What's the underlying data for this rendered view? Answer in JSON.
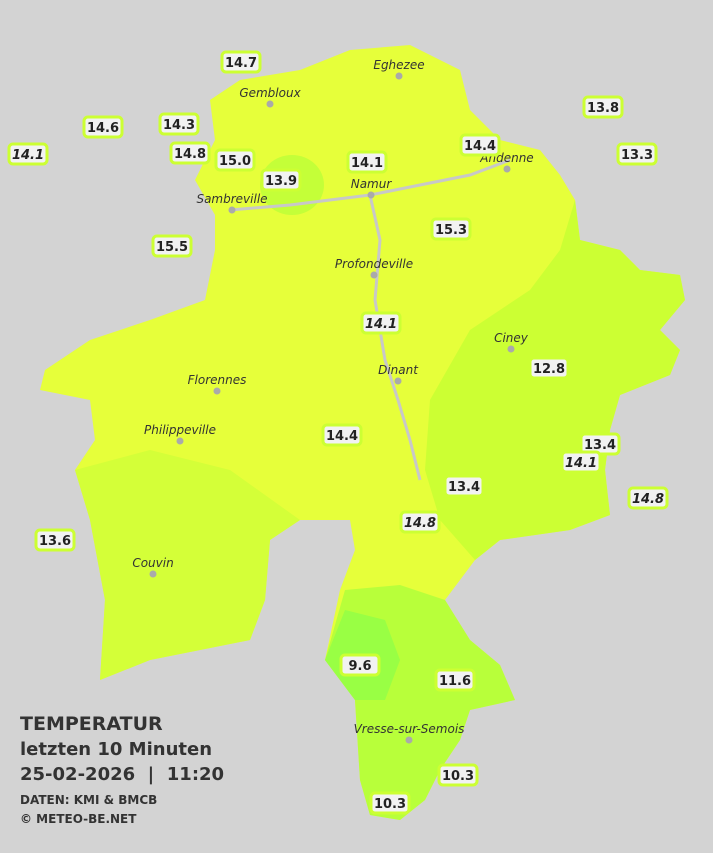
{
  "title": "TEMPERATUR",
  "subtitle": "letzten 10 Minuten",
  "datetime": "25-02-2026  |  11:20",
  "source": "DATEN: KMI & BMCB",
  "copyright": "© METEO-BE.NET",
  "cities": [
    "Eghezee",
    "Gembloux",
    "Andenne",
    "Namur",
    "Sambreville",
    "Profondeville",
    "Ciney",
    "Dinant",
    "Florennes",
    "Philippeville",
    "Couvin",
    "Vresse-sur-Semois"
  ],
  "stations": [
    {
      "label": "14.7",
      "italic": false
    },
    {
      "label": "14.6",
      "italic": false
    },
    {
      "label": "14.3",
      "italic": false
    },
    {
      "label": "14.1",
      "italic": true
    },
    {
      "label": "14.8",
      "italic": false
    },
    {
      "label": "15.0",
      "italic": false
    },
    {
      "label": "13.9",
      "italic": false
    },
    {
      "label": "14.1",
      "italic": false
    },
    {
      "label": "14.4",
      "italic": false
    },
    {
      "label": "13.8",
      "italic": false
    },
    {
      "label": "13.3",
      "italic": false
    },
    {
      "label": "15.5",
      "italic": false
    },
    {
      "label": "15.3",
      "italic": false
    },
    {
      "label": "14.1",
      "italic": true
    },
    {
      "label": "12.8",
      "italic": false
    },
    {
      "label": "14.4",
      "italic": false
    },
    {
      "label": "13.4",
      "italic": false
    },
    {
      "label": "14.1",
      "italic": true
    },
    {
      "label": "13.4",
      "italic": false
    },
    {
      "label": "14.8",
      "italic": true
    },
    {
      "label": "14.8",
      "italic": true
    },
    {
      "label": "13.6",
      "italic": false
    },
    {
      "label": "9.6",
      "italic": false
    },
    {
      "label": "11.6",
      "italic": false
    },
    {
      "label": "10.3",
      "italic": false
    },
    {
      "label": "10.3",
      "italic": false
    }
  ]
}
